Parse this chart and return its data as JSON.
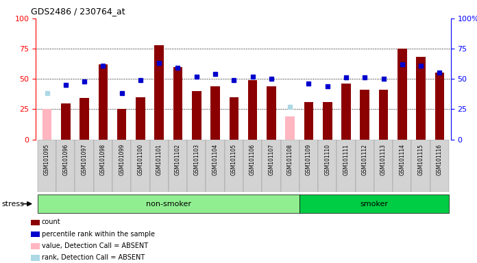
{
  "title": "GDS2486 / 230764_at",
  "samples": [
    "GSM101095",
    "GSM101096",
    "GSM101097",
    "GSM101098",
    "GSM101099",
    "GSM101100",
    "GSM101101",
    "GSM101102",
    "GSM101103",
    "GSM101104",
    "GSM101105",
    "GSM101106",
    "GSM101107",
    "GSM101108",
    "GSM101109",
    "GSM101110",
    "GSM101111",
    "GSM101112",
    "GSM101113",
    "GSM101114",
    "GSM101115",
    "GSM101116"
  ],
  "count_values": [
    25,
    30,
    34,
    62,
    25,
    35,
    78,
    60,
    40,
    44,
    35,
    49,
    44,
    19,
    31,
    31,
    46,
    41,
    41,
    75,
    68,
    55
  ],
  "rank_values": [
    38,
    45,
    48,
    61,
    38,
    49,
    63,
    59,
    52,
    54,
    49,
    52,
    50,
    27,
    46,
    44,
    51,
    51,
    50,
    62,
    61,
    55
  ],
  "absent_mask": [
    true,
    false,
    false,
    false,
    false,
    false,
    false,
    false,
    false,
    false,
    false,
    false,
    false,
    true,
    false,
    false,
    false,
    false,
    false,
    false,
    false,
    false
  ],
  "non_smoker_range": [
    0,
    13
  ],
  "smoker_range": [
    14,
    21
  ],
  "bar_color_present": "#8B0000",
  "bar_color_absent": "#FFB6C1",
  "rank_color_present": "#0000CD",
  "rank_color_absent": "#ADD8E6",
  "ylim_left": [
    0,
    100
  ],
  "ylim_right": [
    0,
    100
  ],
  "yticks": [
    0,
    25,
    50,
    75,
    100
  ],
  "ytick_labels_right": [
    "0",
    "25",
    "50",
    "75",
    "100%"
  ],
  "group_label_nonsmoker": "non-smoker",
  "group_label_smoker": "smoker",
  "stress_label": "stress",
  "legend_items": [
    {
      "label": "count",
      "color": "#8B0000"
    },
    {
      "label": "percentile rank within the sample",
      "color": "#0000CD"
    },
    {
      "label": "value, Detection Call = ABSENT",
      "color": "#FFB6C1"
    },
    {
      "label": "rank, Detection Call = ABSENT",
      "color": "#ADD8E6"
    }
  ],
  "nonsmoker_bg": "#90EE90",
  "smoker_bg": "#00CC44",
  "plot_bg": "#FFFFFF",
  "tick_bg": "#D3D3D3"
}
